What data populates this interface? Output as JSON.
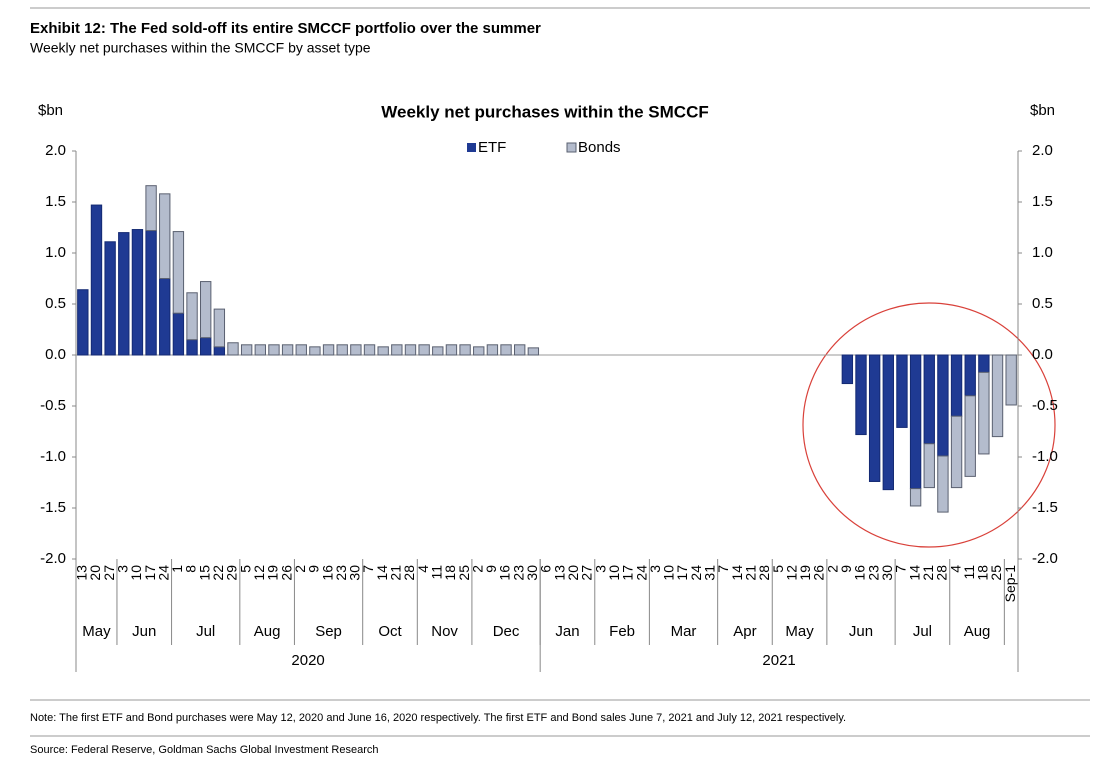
{
  "header": {
    "title": "Exhibit 12: The Fed sold-off its entire SMCCF portfolio over the summer",
    "subtitle": "Weekly net purchases within the SMCCF by asset type"
  },
  "chart_data": {
    "type": "bar",
    "stacked": true,
    "title": "Weekly net purchases within the SMCCF",
    "ylabel": "$bn",
    "y2label": "$bn",
    "categories": [
      "13",
      "20",
      "27",
      "3",
      "10",
      "17",
      "24",
      "1",
      "8",
      "15",
      "22",
      "29",
      "5",
      "12",
      "19",
      "26",
      "2",
      "9",
      "16",
      "23",
      "30",
      "7",
      "14",
      "21",
      "28",
      "4",
      "11",
      "18",
      "25",
      "2",
      "9",
      "16",
      "23",
      "30",
      "6",
      "13",
      "20",
      "27",
      "3",
      "10",
      "17",
      "24",
      "3",
      "10",
      "17",
      "24",
      "31",
      "7",
      "14",
      "21",
      "28",
      "5",
      "12",
      "19",
      "26",
      "2",
      "9",
      "16",
      "23",
      "30",
      "7",
      "14",
      "21",
      "28",
      "4",
      "11",
      "18",
      "25",
      "Sep-1"
    ],
    "months": [
      {
        "label": "May",
        "span": 3
      },
      {
        "label": "Jun",
        "span": 4
      },
      {
        "label": "Jul",
        "span": 5
      },
      {
        "label": "Aug",
        "span": 4
      },
      {
        "label": "Sep",
        "span": 5
      },
      {
        "label": "Oct",
        "span": 4
      },
      {
        "label": "Nov",
        "span": 4
      },
      {
        "label": "Dec",
        "span": 5
      },
      {
        "label": "Jan",
        "span": 4
      },
      {
        "label": "Feb",
        "span": 4
      },
      {
        "label": "Mar",
        "span": 5
      },
      {
        "label": "Apr",
        "span": 4
      },
      {
        "label": "May",
        "span": 4
      },
      {
        "label": "Jun",
        "span": 5
      },
      {
        "label": "Jul",
        "span": 4
      },
      {
        "label": "Aug",
        "span": 4
      }
    ],
    "years": [
      {
        "label": "2020",
        "span": 34
      },
      {
        "label": "2021",
        "span": 35
      }
    ],
    "series": [
      {
        "name": "ETF",
        "color": "#1f3a93",
        "values": [
          0.64,
          1.47,
          1.11,
          1.2,
          1.23,
          1.22,
          0.75,
          0.41,
          0.15,
          0.17,
          0.08,
          null,
          null,
          null,
          null,
          null,
          null,
          null,
          null,
          null,
          null,
          null,
          null,
          null,
          null,
          null,
          null,
          null,
          null,
          null,
          null,
          null,
          null,
          null,
          null,
          null,
          null,
          null,
          null,
          null,
          null,
          null,
          null,
          null,
          null,
          null,
          null,
          null,
          null,
          null,
          null,
          null,
          null,
          null,
          null,
          null,
          -0.28,
          -0.78,
          -1.24,
          -1.32,
          -0.71,
          -1.31,
          -0.87,
          -0.99,
          -0.6,
          -0.4,
          -0.17,
          null,
          null
        ]
      },
      {
        "name": "Bonds",
        "color": "#b4bccd",
        "values": [
          null,
          null,
          null,
          null,
          null,
          0.44,
          0.83,
          0.8,
          0.46,
          0.55,
          0.37,
          0.12,
          0.1,
          0.1,
          0.1,
          0.1,
          0.1,
          0.08,
          0.1,
          0.1,
          0.1,
          0.1,
          0.08,
          0.1,
          0.1,
          0.1,
          0.08,
          0.1,
          0.1,
          0.08,
          0.1,
          0.1,
          0.1,
          0.07,
          null,
          null,
          null,
          null,
          null,
          null,
          null,
          null,
          null,
          null,
          null,
          null,
          null,
          null,
          null,
          null,
          null,
          null,
          null,
          null,
          null,
          null,
          null,
          null,
          null,
          null,
          null,
          -0.17,
          -0.43,
          -0.55,
          -0.7,
          -0.79,
          -0.8,
          -0.8,
          -0.49
        ]
      }
    ],
    "ylim": [
      -2,
      2
    ],
    "yticks": [
      {
        "value": -2,
        "label": "-2.0"
      },
      {
        "value": -1.5,
        "label": "-1.5"
      },
      {
        "value": -1,
        "label": "-1.0"
      },
      {
        "value": -0.5,
        "label": "-0.5"
      },
      {
        "value": 0,
        "label": "0.0"
      },
      {
        "value": 0.5,
        "label": "0.5"
      },
      {
        "value": 1,
        "label": "1.0"
      },
      {
        "value": 1.5,
        "label": "1.5"
      },
      {
        "value": 2,
        "label": "2.0"
      }
    ],
    "y2lim": [
      -2,
      2
    ],
    "y2ticks": [
      {
        "value": -2,
        "label": "-2.0"
      },
      {
        "value": -1.5,
        "label": "-1.5"
      },
      {
        "value": -1,
        "label": "-1.0"
      },
      {
        "value": -0.5,
        "label": "-0.5"
      },
      {
        "value": 0,
        "label": "0.0"
      },
      {
        "value": 0.5,
        "label": "0.5"
      },
      {
        "value": 1,
        "label": "1.0"
      },
      {
        "value": 1.5,
        "label": "1.5"
      },
      {
        "value": 2,
        "label": "2.0"
      }
    ],
    "legend": "top"
  },
  "footer": {
    "note": "Note: The first ETF and Bond purchases were May 12, 2020 and June 16, 2020 respectively. The first ETF and Bond sales June 7, 2021 and July 12, 2021 respectively.",
    "source": "Source: Federal Reserve, Goldman Sachs Global Investment Research"
  }
}
